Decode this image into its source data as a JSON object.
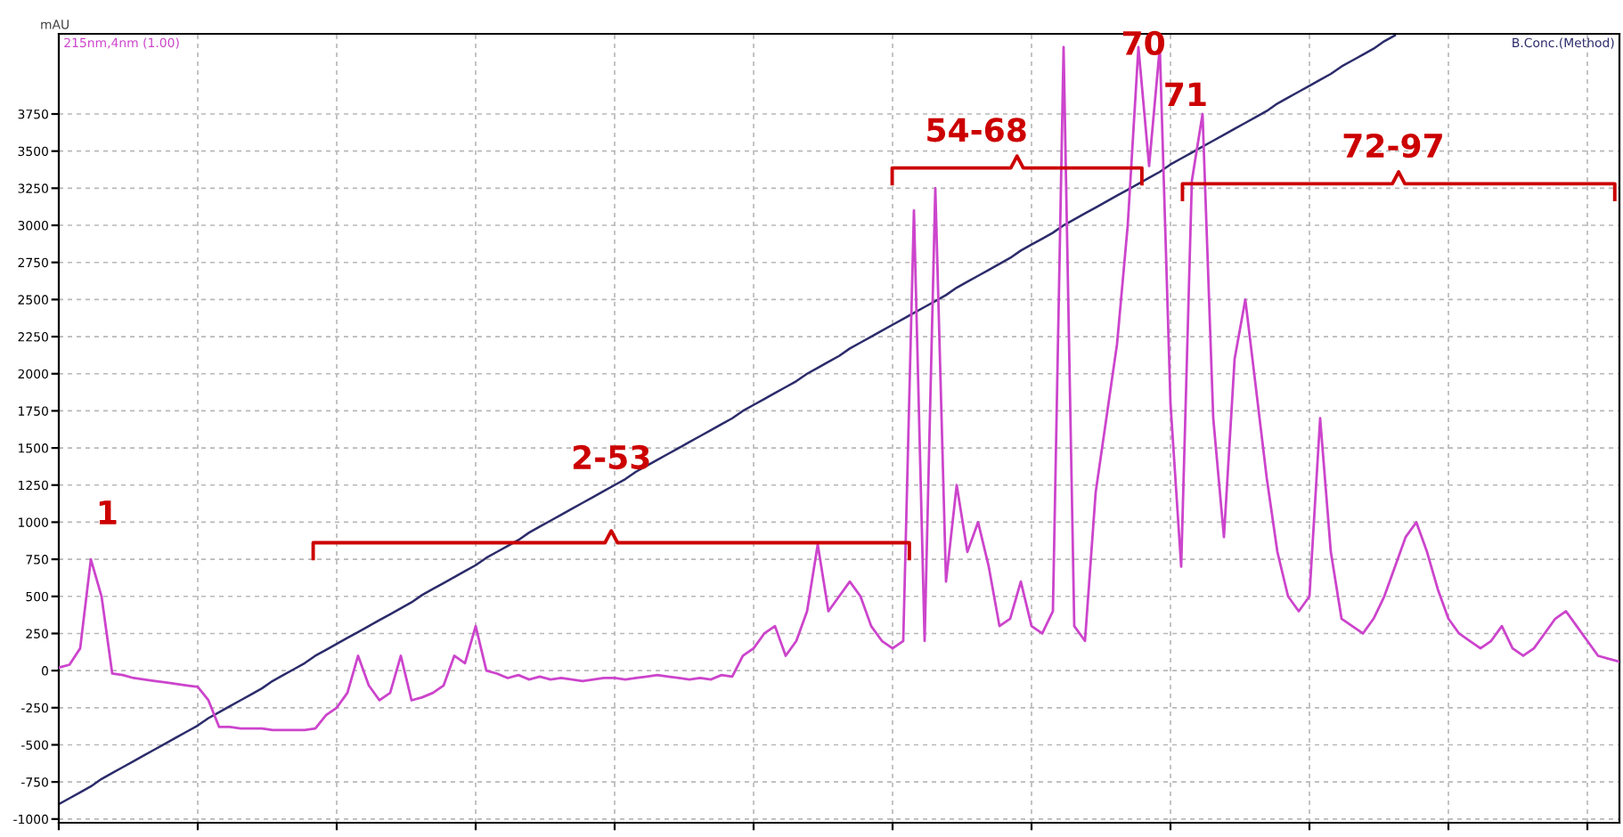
{
  "chart_data": {
    "type": "line",
    "ylabel": "mAU",
    "categories": [
      null,
      null,
      null,
      null,
      null,
      null,
      null,
      null,
      null,
      null,
      null,
      null,
      null,
      null,
      null,
      null,
      null,
      null,
      null,
      null,
      null,
      null,
      null,
      null,
      null,
      null,
      null,
      null,
      null,
      null,
      null,
      null,
      null,
      null,
      null,
      null,
      null,
      null,
      null,
      null,
      null,
      null,
      null,
      null,
      null,
      null,
      null,
      null,
      null,
      null,
      null,
      null,
      null,
      null,
      null,
      null,
      null,
      null,
      null,
      null,
      null,
      null,
      null,
      null,
      null,
      null,
      null,
      null,
      null,
      null,
      null,
      null,
      null,
      null,
      null,
      null,
      null,
      null,
      null,
      null,
      null,
      null,
      null,
      null,
      null,
      null,
      null,
      null,
      null,
      null,
      null,
      null,
      null,
      null,
      null,
      null,
      null,
      null,
      null,
      null,
      null,
      null,
      null,
      null,
      null,
      null,
      null,
      null,
      null,
      null,
      null,
      null,
      null,
      null,
      null,
      null,
      null,
      null,
      null,
      null,
      null,
      null,
      null,
      null,
      null,
      null,
      null,
      null,
      null,
      null,
      null,
      null,
      null,
      null,
      null,
      null,
      null,
      null,
      null,
      null,
      null,
      null,
      null,
      null,
      null,
      null,
      null
    ],
    "series": [
      {
        "name": "215nm,4nm (1.00)",
        "color": "#cc44cc",
        "values": [
          20,
          40,
          150,
          750,
          500,
          -20,
          -30,
          -50,
          -60,
          -70,
          -80,
          -90,
          -100,
          -110,
          -200,
          -380,
          -380,
          -390,
          -390,
          -390,
          -400,
          -400,
          -400,
          -400,
          -390,
          -300,
          -250,
          -150,
          100,
          -100,
          -200,
          -150,
          100,
          -200,
          -180,
          -150,
          -100,
          100,
          50,
          300,
          0,
          -20,
          -50,
          -30,
          -60,
          -40,
          -60,
          -50,
          -60,
          -70,
          -60,
          -50,
          -50,
          -60,
          -50,
          -40,
          -30,
          -40,
          -50,
          -60,
          -50,
          -60,
          -30,
          -40,
          100,
          150,
          250,
          300,
          100,
          200,
          400,
          850,
          400,
          500,
          600,
          500,
          300,
          200,
          150,
          200,
          3100,
          200,
          3250,
          600,
          1250,
          800,
          1000,
          700,
          300,
          350,
          600,
          300,
          250,
          400,
          4200,
          300,
          200,
          1200,
          1700,
          2200,
          3000,
          4200,
          3400,
          4200,
          1800,
          700,
          3300,
          3750,
          1700,
          900,
          2100,
          2500,
          1900,
          1300,
          800,
          500,
          400,
          500,
          1700,
          800,
          350,
          300,
          250,
          350,
          500,
          700,
          900,
          1000,
          800,
          550,
          350,
          250,
          200,
          150,
          200,
          300,
          150,
          100,
          150,
          250,
          350,
          400,
          300,
          200,
          100,
          80,
          60
        ]
      },
      {
        "name": "B.Conc.(Method)",
        "color": "#2b2b6b",
        "values": [
          -900,
          -860,
          -820,
          -780,
          -730,
          -690,
          -650,
          -610,
          -570,
          -530,
          -490,
          -450,
          -410,
          -370,
          -320,
          -280,
          -240,
          -200,
          -160,
          -120,
          -70,
          -30,
          10,
          50,
          100,
          140,
          180,
          220,
          260,
          300,
          340,
          380,
          420,
          460,
          510,
          550,
          590,
          630,
          670,
          710,
          760,
          800,
          840,
          880,
          930,
          970,
          1010,
          1050,
          1090,
          1130,
          1170,
          1210,
          1250,
          1290,
          1340,
          1380,
          1420,
          1460,
          1500,
          1540,
          1580,
          1620,
          1660,
          1700,
          1750,
          1790,
          1830,
          1870,
          1910,
          1950,
          2000,
          2040,
          2080,
          2120,
          2170,
          2210,
          2250,
          2290,
          2330,
          2370,
          2410,
          2450,
          2490,
          2530,
          2580,
          2620,
          2660,
          2700,
          2740,
          2780,
          2830,
          2870,
          2910,
          2950,
          3000,
          3040,
          3080,
          3120,
          3160,
          3200,
          3240,
          3280,
          3320,
          3360,
          3410,
          3450,
          3490,
          3530,
          3570,
          3610,
          3650,
          3690,
          3730,
          3770,
          3820,
          3860,
          3900,
          3940,
          3980,
          4020,
          4070,
          4110,
          4150,
          4190,
          4240,
          4280,
          null,
          null,
          null,
          null,
          null,
          null,
          null,
          null,
          null,
          null,
          null,
          null,
          null,
          null,
          null,
          null,
          null,
          null,
          null,
          null,
          null
        ]
      }
    ],
    "ylim": [
      -1025,
      4290
    ],
    "yticks": [
      -1000,
      -750,
      -500,
      -250,
      0,
      250,
      500,
      750,
      1000,
      1250,
      1500,
      1750,
      2000,
      2250,
      2500,
      2750,
      3000,
      3250,
      3500,
      3750
    ],
    "grid": true,
    "tick_labels": "y",
    "legend": false,
    "annotations": [
      "1",
      "2-53",
      "54-68",
      "70",
      "71",
      "72-97"
    ]
  }
}
